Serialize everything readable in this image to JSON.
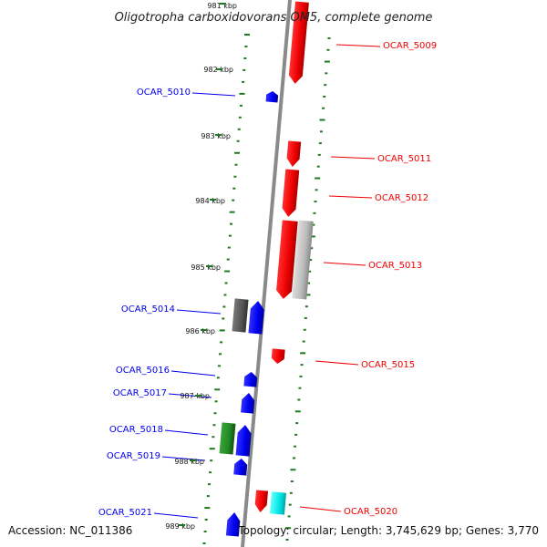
{
  "title": "Oligotropha carboxidovorans OM5, complete genome",
  "footer": {
    "accession": "Accession: NC_011386",
    "topology": "Topology: circular; Length: 3,745,629 bp; Genes: 3,770"
  },
  "colors": {
    "forward": "#ee0000",
    "reverse": "#0000ee",
    "green": "#228b22",
    "cyan": "#00e5e5",
    "gray": "#bbbbbb",
    "dark_gray": "#555555",
    "dots": "#1e7a1e",
    "backbone": "#8a8a8a"
  },
  "ticks": [
    {
      "label": "981 kbp"
    },
    {
      "label": "982 kbp"
    },
    {
      "label": "983 kbp"
    },
    {
      "label": "984 kbp"
    },
    {
      "label": "985 kbp"
    },
    {
      "label": "986 kbp"
    },
    {
      "label": "987 kbp"
    },
    {
      "label": "988 kbp"
    },
    {
      "label": "989 kbp"
    }
  ],
  "genes": [
    {
      "label": "OCAR_5009",
      "strand": "+",
      "color": "red"
    },
    {
      "label": "OCAR_5010",
      "strand": "-",
      "color": "blue"
    },
    {
      "label": "OCAR_5011",
      "strand": "+",
      "color": "red"
    },
    {
      "label": "OCAR_5012",
      "strand": "+",
      "color": "red"
    },
    {
      "label": "OCAR_5013",
      "strand": "+",
      "color": "red"
    },
    {
      "label": "OCAR_5014",
      "strand": "-",
      "color": "blue"
    },
    {
      "label": "OCAR_5015",
      "strand": "+",
      "color": "red"
    },
    {
      "label": "OCAR_5016",
      "strand": "-",
      "color": "blue"
    },
    {
      "label": "OCAR_5017",
      "strand": "-",
      "color": "blue"
    },
    {
      "label": "OCAR_5018",
      "strand": "-",
      "color": "blue"
    },
    {
      "label": "OCAR_5019",
      "strand": "-",
      "color": "blue"
    },
    {
      "label": "OCAR_5020",
      "strand": "+",
      "color": "red"
    },
    {
      "label": "OCAR_5021",
      "strand": "-",
      "color": "blue"
    }
  ]
}
